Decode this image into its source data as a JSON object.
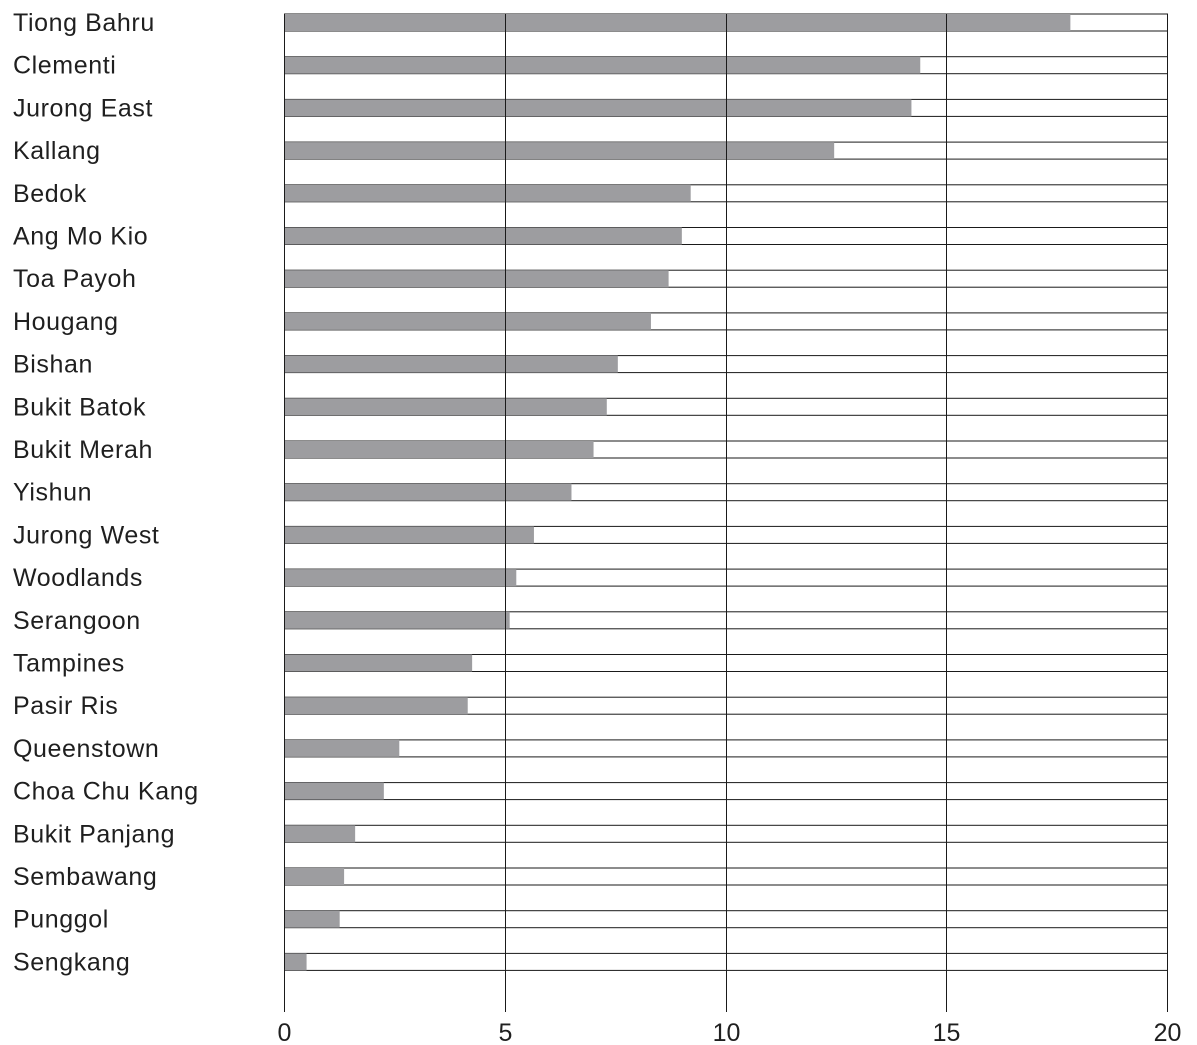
{
  "chart_data": {
    "type": "bar",
    "orientation": "horizontal",
    "categories": [
      "Tiong Bahru",
      "Clementi",
      "Jurong East",
      "Kallang",
      "Bedok",
      "Ang Mo Kio",
      "Toa Payoh",
      "Hougang",
      "Bishan",
      "Bukit Batok",
      "Bukit Merah",
      "Yishun",
      "Jurong West",
      "Woodlands",
      "Serangoon",
      "Tampines",
      "Pasir Ris",
      "Queenstown",
      "Choa Chu Kang",
      "Bukit Panjang",
      "Sembawang",
      "Punggol",
      "Sengkang"
    ],
    "values": [
      17.8,
      14.4,
      14.2,
      12.45,
      9.2,
      9.0,
      8.7,
      8.3,
      7.55,
      7.3,
      7.0,
      6.5,
      5.65,
      5.25,
      5.1,
      4.25,
      4.15,
      2.6,
      2.25,
      1.6,
      1.35,
      1.25,
      0.5
    ],
    "xlim": [
      0,
      20
    ],
    "xticks": [
      "0",
      "5",
      "10",
      "15",
      "20"
    ],
    "grid": true,
    "colors": {
      "bar": "#9d9da0",
      "track": "#ffffff",
      "axis": "#1a1a1a"
    }
  }
}
